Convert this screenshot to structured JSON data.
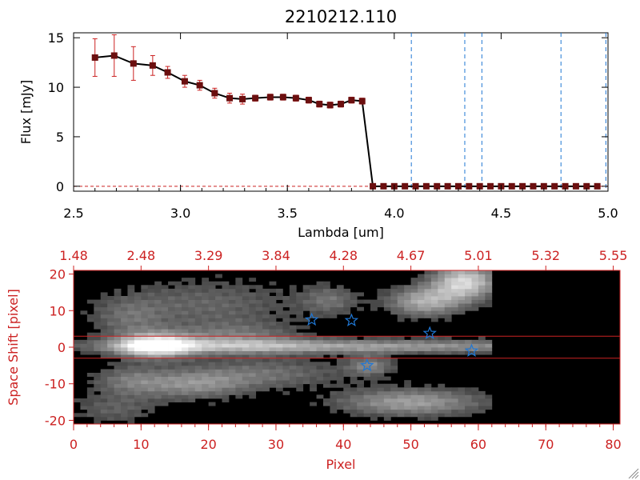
{
  "chart_data": [
    {
      "type": "line",
      "title": "2210212.110",
      "xlabel": "Lambda [um]",
      "ylabel": "Flux [mJy]",
      "xlim": [
        2.5,
        5.0
      ],
      "ylim": [
        -0.5,
        15.5
      ],
      "xticks": [
        "2.5",
        "3.0",
        "3.5",
        "4.0",
        "4.5",
        "5.0"
      ],
      "yticks": [
        "0",
        "5",
        "10",
        "15"
      ],
      "xtick_values": [
        2.5,
        3.0,
        3.5,
        4.0,
        4.5,
        5.0
      ],
      "ytick_values": [
        0,
        5,
        10,
        15
      ],
      "series": [
        {
          "x": [
            2.6,
            2.69,
            2.78,
            2.87,
            2.94,
            3.02,
            3.09,
            3.16,
            3.23,
            3.29,
            3.35,
            3.42,
            3.48,
            3.54,
            3.6,
            3.65,
            3.7,
            3.75,
            3.8,
            3.85,
            3.9,
            3.95,
            4.0,
            4.05,
            4.1,
            4.15,
            4.2,
            4.25,
            4.3,
            4.35,
            4.4,
            4.45,
            4.5,
            4.55,
            4.6,
            4.65,
            4.7,
            4.75,
            4.8,
            4.85,
            4.9,
            4.95
          ],
          "y": [
            13.0,
            13.2,
            12.4,
            12.2,
            11.5,
            10.6,
            10.2,
            9.4,
            8.9,
            8.8,
            8.9,
            9.0,
            9.0,
            8.9,
            8.7,
            8.3,
            8.2,
            8.3,
            8.7,
            8.6,
            0,
            0,
            0,
            0,
            0,
            0,
            0,
            0,
            0,
            0,
            0,
            0,
            0,
            0,
            0,
            0,
            0,
            0,
            0,
            0,
            0,
            0
          ],
          "yerr": [
            1.9,
            2.1,
            1.7,
            1.0,
            0.6,
            0.6,
            0.5,
            0.5,
            0.5,
            0.5,
            0.3,
            0.3,
            0.3,
            0.3,
            0.3,
            0.3,
            0.3,
            0.3,
            0.3,
            0.3,
            0,
            0,
            0,
            0,
            0,
            0,
            0,
            0,
            0,
            0,
            0,
            0,
            0,
            0,
            0,
            0,
            0,
            0,
            0,
            0,
            0,
            0
          ]
        }
      ],
      "vlines": [
        4.08,
        4.33,
        4.41,
        4.78,
        4.99
      ],
      "hline": 0,
      "colors": {
        "line": "#000000",
        "marker": "#6b0f0f",
        "error": "#cc2222",
        "vline": "#1f77d4",
        "hline": "#cc2222"
      }
    },
    {
      "type": "heatmap",
      "xlabel": "Pixel",
      "ylabel": "Space Shift [pixel]",
      "xlim": [
        0,
        81
      ],
      "ylim": [
        -21,
        21
      ],
      "xticks": [
        "0",
        "10",
        "20",
        "30",
        "40",
        "50",
        "60",
        "70",
        "80"
      ],
      "yticks": [
        "-20",
        "-10",
        "0",
        "10",
        "20"
      ],
      "xtick_values": [
        0,
        10,
        20,
        30,
        40,
        50,
        60,
        70,
        80
      ],
      "ytick_values": [
        -20,
        -10,
        0,
        10,
        20
      ],
      "top_axis_ticks": [
        "1.48",
        "2.48",
        "3.29",
        "3.84",
        "4.28",
        "4.67",
        "5.01",
        "5.32",
        "5.55"
      ],
      "hlines": [
        3,
        -3
      ],
      "stars": [
        {
          "x": 35.3,
          "y": 7.5
        },
        {
          "x": 41.2,
          "y": 7.3
        },
        {
          "x": 43.5,
          "y": -5.0
        },
        {
          "x": 52.8,
          "y": 3.8
        },
        {
          "x": 59.0,
          "y": -1.0
        }
      ],
      "data_extent_x": 62,
      "blobs": [
        {
          "cx": 42,
          "cy": 0.3,
          "sx": 30,
          "sy": 1.4,
          "amp": 0.55
        },
        {
          "cx": 12,
          "cy": 0.5,
          "sx": 4,
          "sy": 2.4,
          "amp": 0.9
        },
        {
          "cx": 24,
          "cy": 2.5,
          "sx": 7,
          "sy": 3.0,
          "amp": 0.35
        },
        {
          "cx": 20,
          "cy": 12,
          "sx": 10,
          "sy": 5,
          "amp": 0.28
        },
        {
          "cx": 18,
          "cy": -10,
          "sx": 6,
          "sy": 3,
          "amp": 0.45
        },
        {
          "cx": 30,
          "cy": -7,
          "sx": 8,
          "sy": 3,
          "amp": 0.3
        },
        {
          "cx": 8,
          "cy": -9,
          "sx": 4,
          "sy": 3,
          "amp": 0.3
        },
        {
          "cx": 52,
          "cy": 12.5,
          "sx": 4,
          "sy": 3,
          "amp": 0.6
        },
        {
          "cx": 58,
          "cy": 18,
          "sx": 3.5,
          "sy": 3.5,
          "amp": 0.8
        },
        {
          "cx": 50,
          "cy": -15,
          "sx": 8,
          "sy": 2.8,
          "amp": 0.55
        },
        {
          "cx": 44,
          "cy": -5,
          "sx": 2.5,
          "sy": 2,
          "amp": 0.4
        },
        {
          "cx": 38,
          "cy": 13,
          "sx": 3,
          "sy": 3,
          "amp": 0.3
        },
        {
          "cx": 8,
          "cy": 8,
          "sx": 4,
          "sy": 4,
          "amp": 0.25
        },
        {
          "cx": 6,
          "cy": -17,
          "sx": 5,
          "sy": 3,
          "amp": 0.25
        }
      ],
      "colors": {
        "axes": "#cc2222",
        "hline": "#cc2222",
        "star": "#1f77d4",
        "background": "#000000"
      }
    }
  ]
}
